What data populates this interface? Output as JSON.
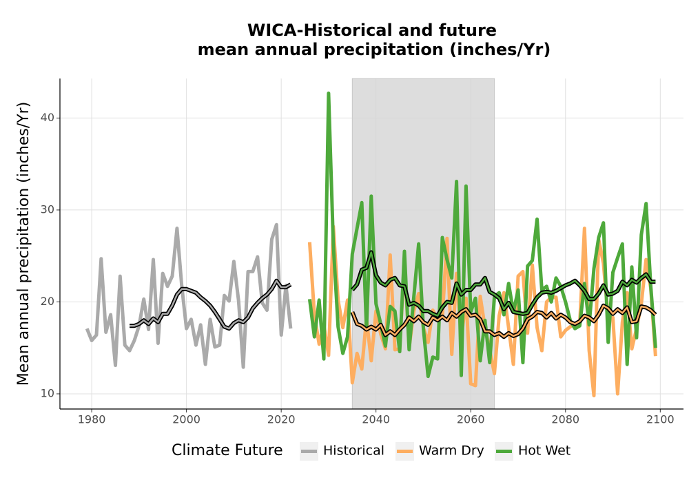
{
  "chart_data": {
    "type": "line",
    "title": [
      "WICA-Historical and future",
      "mean annual precipitation (inches/Yr)"
    ],
    "y_label": "Mean annual precipitation (inches/Yr)",
    "legend_title": "Climate Future",
    "shaded_range": [
      2035,
      2065
    ],
    "xlim": [
      1973.3,
      2104.9
    ],
    "xticks": [
      1980,
      2000,
      2020,
      2040,
      2060,
      2080,
      2100
    ],
    "ylim": [
      8.35,
      44.3
    ],
    "yticks": [
      10,
      20,
      30,
      40
    ],
    "grid": true,
    "series": [
      {
        "name": "Historical",
        "color": "#aaaaaa",
        "x": [
          1979,
          1980,
          1981,
          1982,
          1983,
          1984,
          1985,
          1986,
          1987,
          1988,
          1989,
          1990,
          1991,
          1992,
          1993,
          1994,
          1995,
          1996,
          1997,
          1998,
          1999,
          2000,
          2001,
          2002,
          2003,
          2004,
          2005,
          2006,
          2007,
          2008,
          2009,
          2010,
          2011,
          2012,
          2013,
          2014,
          2015,
          2016,
          2017,
          2018,
          2019,
          2020,
          2021,
          2022
        ],
        "values": [
          17.1,
          15.8,
          16.4,
          24.7,
          16.7,
          18.6,
          13.1,
          22.8,
          15.3,
          14.7,
          15.8,
          17.4,
          20.3,
          17.0,
          24.6,
          15.5,
          23.1,
          21.7,
          22.8,
          28.0,
          21.8,
          17.1,
          18.1,
          15.3,
          17.5,
          13.2,
          18.1,
          15.1,
          15.3,
          20.7,
          20.1,
          24.4,
          20.1,
          12.9,
          23.3,
          23.3,
          24.9,
          19.9,
          19.1,
          26.8,
          28.4,
          16.4,
          21.8,
          17.1
        ],
        "smooth": {
          "x": [
            1988,
            1989,
            1990,
            1991,
            1992,
            1993,
            1994,
            1995,
            1996,
            1997,
            1998,
            1999,
            2000,
            2001,
            2002,
            2003,
            2004,
            2005,
            2006,
            2007,
            2008,
            2009,
            2010,
            2011,
            2012,
            2013,
            2014,
            2015,
            2016,
            2017,
            2018,
            2019,
            2020,
            2021,
            2022
          ],
          "values": [
            17.4,
            17.4,
            17.6,
            18.0,
            17.6,
            18.2,
            17.8,
            18.7,
            18.7,
            19.6,
            20.8,
            21.4,
            21.4,
            21.2,
            21.0,
            20.5,
            20.1,
            19.6,
            18.9,
            18.1,
            17.3,
            17.1,
            17.7,
            18.0,
            17.8,
            18.3,
            19.3,
            19.9,
            20.4,
            20.8,
            21.4,
            22.3,
            21.6,
            21.6,
            21.9
          ]
        }
      },
      {
        "name": "Warm Dry",
        "color": "#fdae61",
        "x": [
          2026,
          2027,
          2028,
          2029,
          2030,
          2031,
          2032,
          2033,
          2034,
          2035,
          2036,
          2037,
          2038,
          2039,
          2040,
          2041,
          2042,
          2043,
          2044,
          2045,
          2046,
          2047,
          2048,
          2049,
          2050,
          2051,
          2052,
          2053,
          2054,
          2055,
          2056,
          2057,
          2058,
          2059,
          2060,
          2061,
          2062,
          2063,
          2064,
          2065,
          2066,
          2067,
          2068,
          2069,
          2070,
          2071,
          2072,
          2073,
          2074,
          2075,
          2076,
          2077,
          2078,
          2079,
          2080,
          2081,
          2082,
          2083,
          2084,
          2085,
          2086,
          2087,
          2088,
          2089,
          2090,
          2091,
          2092,
          2093,
          2094,
          2095,
          2096,
          2097,
          2098,
          2099
        ],
        "values": [
          26.5,
          18.6,
          15.4,
          17.5,
          14.2,
          28.2,
          20.2,
          17.2,
          20.2,
          11.2,
          14.4,
          12.7,
          18.2,
          13.6,
          19.0,
          16.5,
          14.9,
          25.1,
          14.8,
          14.9,
          24.5,
          15.0,
          19.0,
          20.9,
          17.2,
          15.6,
          19.1,
          18.1,
          18.3,
          26.9,
          14.3,
          23.1,
          16.0,
          20.4,
          11.1,
          10.9,
          20.6,
          17.2,
          14.8,
          12.2,
          18.5,
          21.0,
          17.2,
          13.2,
          22.8,
          23.3,
          16.6,
          24.0,
          17.2,
          14.7,
          20.0,
          20.5,
          20.5,
          16.2,
          16.9,
          17.3,
          17.6,
          17.6,
          28.0,
          14.7,
          9.8,
          26.8,
          24.2,
          18.2,
          18.3,
          10.0,
          17.8,
          21.0,
          14.9,
          17.1,
          19.8,
          24.6,
          21.5,
          14.1
        ],
        "smooth": {
          "x": [
            2035,
            2036,
            2037,
            2038,
            2039,
            2040,
            2041,
            2042,
            2043,
            2044,
            2045,
            2046,
            2047,
            2048,
            2049,
            2050,
            2051,
            2052,
            2053,
            2054,
            2055,
            2056,
            2057,
            2058,
            2059,
            2060,
            2061,
            2062,
            2063,
            2064,
            2065,
            2066,
            2067,
            2068,
            2069,
            2070,
            2071,
            2072,
            2073,
            2074,
            2075,
            2076,
            2077,
            2078,
            2079,
            2080,
            2081,
            2082,
            2083,
            2084,
            2085,
            2086,
            2087,
            2088,
            2089,
            2090,
            2091,
            2092,
            2093,
            2094,
            2095,
            2096,
            2097,
            2098,
            2099
          ],
          "values": [
            18.9,
            17.6,
            17.4,
            17.0,
            17.3,
            17.0,
            17.5,
            16.4,
            16.8,
            16.4,
            17.0,
            17.5,
            18.3,
            17.9,
            18.4,
            17.8,
            17.5,
            18.3,
            18.0,
            18.4,
            18.0,
            18.8,
            18.4,
            18.9,
            19.2,
            18.5,
            18.6,
            18.1,
            16.8,
            16.8,
            16.4,
            16.6,
            16.2,
            16.6,
            16.3,
            16.5,
            17.1,
            18.1,
            18.4,
            18.9,
            18.8,
            18.3,
            18.8,
            18.2,
            18.6,
            18.3,
            17.8,
            17.6,
            17.9,
            18.5,
            18.3,
            17.9,
            18.6,
            19.6,
            19.3,
            18.7,
            19.2,
            18.8,
            19.4,
            17.8,
            17.9,
            19.5,
            19.4,
            19.1,
            18.6
          ]
        }
      },
      {
        "name": "Hot Wet",
        "color": "#4ea93b",
        "x": [
          2026,
          2027,
          2028,
          2029,
          2030,
          2031,
          2032,
          2033,
          2034,
          2035,
          2036,
          2037,
          2038,
          2039,
          2040,
          2041,
          2042,
          2043,
          2044,
          2045,
          2046,
          2047,
          2048,
          2049,
          2050,
          2051,
          2052,
          2053,
          2054,
          2055,
          2056,
          2057,
          2058,
          2059,
          2060,
          2061,
          2062,
          2063,
          2064,
          2065,
          2066,
          2067,
          2068,
          2069,
          2070,
          2071,
          2072,
          2073,
          2074,
          2075,
          2076,
          2077,
          2078,
          2079,
          2080,
          2081,
          2082,
          2083,
          2084,
          2085,
          2086,
          2087,
          2088,
          2089,
          2090,
          2091,
          2092,
          2093,
          2094,
          2095,
          2096,
          2097,
          2098,
          2099
        ],
        "values": [
          20.3,
          16.2,
          20.2,
          13.8,
          42.7,
          26.2,
          17.3,
          14.4,
          16.2,
          25.2,
          28.0,
          30.8,
          17.0,
          31.5,
          19.8,
          17.6,
          15.2,
          19.5,
          19.0,
          14.6,
          25.5,
          14.8,
          20.6,
          26.3,
          17.1,
          11.9,
          14.0,
          13.8,
          27.0,
          24.6,
          22.6,
          33.1,
          12.0,
          32.6,
          18.9,
          20.4,
          13.6,
          18.0,
          13.4,
          20.6,
          21.0,
          18.6,
          22.0,
          18.9,
          21.3,
          13.4,
          23.9,
          24.5,
          29.0,
          21.3,
          21.7,
          20.0,
          22.6,
          21.7,
          20.0,
          18.0,
          17.1,
          17.4,
          22.0,
          17.5,
          23.6,
          27.0,
          28.6,
          15.6,
          23.2,
          24.8,
          26.3,
          13.2,
          23.8,
          16.1,
          27.3,
          30.7,
          21.7,
          15.0
        ],
        "smooth": {
          "x": [
            2035,
            2036,
            2037,
            2038,
            2039,
            2040,
            2041,
            2042,
            2043,
            2044,
            2045,
            2046,
            2047,
            2048,
            2049,
            2050,
            2051,
            2052,
            2053,
            2054,
            2055,
            2056,
            2057,
            2058,
            2059,
            2060,
            2061,
            2062,
            2063,
            2064,
            2065,
            2066,
            2067,
            2068,
            2069,
            2070,
            2071,
            2072,
            2073,
            2074,
            2075,
            2076,
            2077,
            2078,
            2079,
            2080,
            2081,
            2082,
            2083,
            2084,
            2085,
            2086,
            2087,
            2088,
            2089,
            2090,
            2091,
            2092,
            2093,
            2094,
            2095,
            2096,
            2097,
            2098,
            2099
          ],
          "values": [
            21.3,
            21.9,
            23.5,
            23.7,
            25.4,
            22.9,
            22.1,
            21.8,
            22.4,
            22.6,
            21.8,
            21.7,
            19.7,
            19.9,
            19.6,
            19.0,
            19.0,
            18.7,
            18.5,
            19.4,
            20.0,
            19.9,
            22.0,
            20.8,
            21.3,
            21.3,
            21.9,
            21.9,
            22.6,
            21.1,
            20.8,
            20.4,
            19.2,
            19.9,
            18.9,
            18.8,
            18.7,
            18.8,
            19.7,
            20.5,
            21.0,
            21.1,
            21.0,
            21.2,
            21.5,
            21.8,
            22.0,
            22.3,
            21.8,
            21.2,
            20.3,
            20.3,
            20.9,
            21.8,
            20.8,
            20.9,
            21.2,
            22.2,
            21.8,
            22.4,
            22.1,
            22.6,
            23.0,
            22.2,
            22.2
          ]
        }
      }
    ]
  }
}
